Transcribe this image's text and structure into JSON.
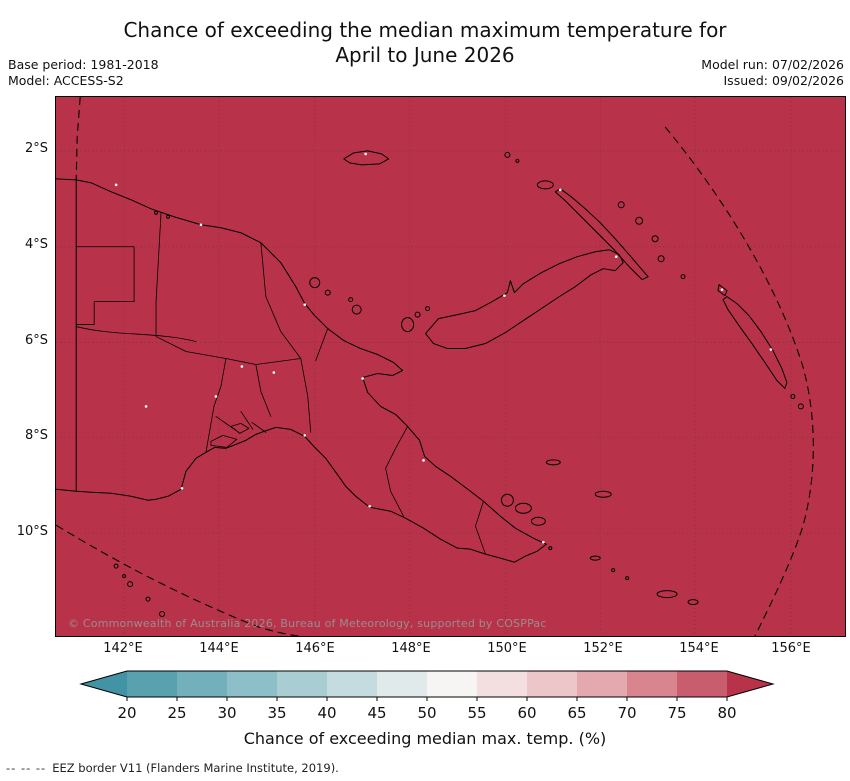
{
  "header": {
    "title_line1": "Chance of exceeding the median maximum temperature for",
    "title_line2": "April to June 2026",
    "base_period": "Base period: 1981-2018",
    "model": "Model: ACCESS-S2",
    "model_run": "Model run: 07/02/2026",
    "issued": "Issued: 09/02/2026"
  },
  "map": {
    "fill_color": "#b8334a",
    "coastline_color": "#000000",
    "copyright": "© Commonwealth of Australia 2026, Bureau of Meteorology, supported by COSPPac",
    "y_ticks": [
      "2°S",
      "4°S",
      "6°S",
      "8°S",
      "10°S"
    ],
    "x_ticks": [
      "142°E",
      "144°E",
      "146°E",
      "148°E",
      "150°E",
      "152°E",
      "154°E",
      "156°E"
    ]
  },
  "colorbar": {
    "label": "Chance of exceeding median max. temp. (%)",
    "ticks": [
      "20",
      "25",
      "30",
      "35",
      "40",
      "45",
      "50",
      "55",
      "60",
      "65",
      "70",
      "75",
      "80"
    ],
    "left_arrow_color": "#4293a4",
    "right_arrow_color": "#b8334a",
    "segment_colors": [
      "#59a1af",
      "#72b0bc",
      "#8cbfc8",
      "#a8ced3",
      "#c4dcdf",
      "#e0eaeb",
      "#f7f5f4",
      "#f3dfe0",
      "#edc6ca",
      "#e4a8af",
      "#d8858f",
      "#c85e6d"
    ]
  },
  "footer": {
    "dash_sample": "--  --  --",
    "note": "EEZ border V11 (Flanders Marine Institute, 2019)."
  }
}
